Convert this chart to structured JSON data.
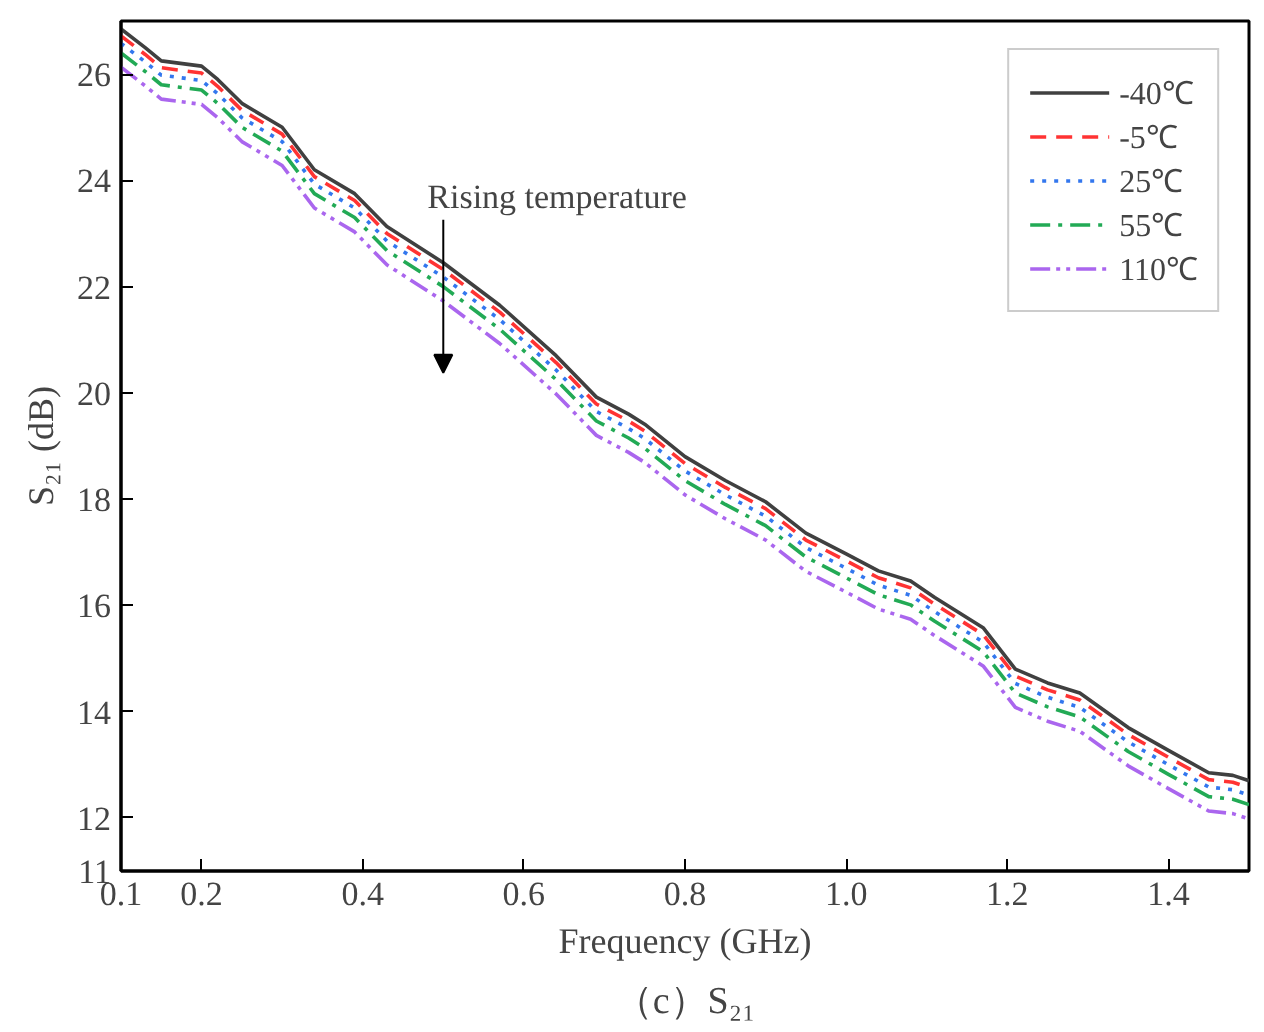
{
  "chart_data": {
    "type": "line",
    "xlabel": "Frequency (GHz)",
    "ylabel": "S₂₁ (dB)",
    "x": [
      0.1,
      0.13,
      0.15,
      0.2,
      0.22,
      0.25,
      0.3,
      0.34,
      0.39,
      0.43,
      0.5,
      0.57,
      0.64,
      0.69,
      0.73,
      0.75,
      0.8,
      0.85,
      0.9,
      0.95,
      1.0,
      1.04,
      1.08,
      1.11,
      1.17,
      1.21,
      1.25,
      1.29,
      1.35,
      1.4,
      1.45,
      1.48,
      1.5
    ],
    "series": [
      {
        "name": "-40℃",
        "color": "#404040",
        "line_style": "solid",
        "values": [
          26.85,
          26.5,
          26.25,
          26.15,
          25.9,
          25.45,
          25.0,
          24.2,
          23.75,
          23.13,
          22.45,
          21.65,
          20.7,
          19.92,
          19.6,
          19.41,
          18.8,
          18.35,
          17.95,
          17.36,
          16.97,
          16.65,
          16.46,
          16.15,
          15.58,
          14.8,
          14.54,
          14.35,
          13.7,
          13.27,
          12.85,
          12.8,
          12.7
        ]
      },
      {
        "name": "-5℃",
        "color": "#ff3333",
        "line_style": "dashed",
        "values": [
          26.72,
          26.37,
          26.12,
          26.02,
          25.77,
          25.32,
          24.87,
          24.07,
          23.62,
          23.0,
          22.32,
          21.52,
          20.57,
          19.79,
          19.47,
          19.28,
          18.67,
          18.22,
          17.82,
          17.23,
          16.84,
          16.52,
          16.33,
          16.02,
          15.45,
          14.67,
          14.41,
          14.22,
          13.57,
          13.14,
          12.72,
          12.67,
          12.57
        ]
      },
      {
        "name": "25℃",
        "color": "#3377ee",
        "line_style": "dotted",
        "values": [
          26.58,
          26.23,
          25.98,
          25.88,
          25.63,
          25.18,
          24.73,
          23.93,
          23.48,
          22.86,
          22.18,
          21.38,
          20.43,
          19.65,
          19.33,
          19.14,
          18.53,
          18.08,
          17.68,
          17.09,
          16.7,
          16.38,
          16.19,
          15.88,
          15.31,
          14.53,
          14.27,
          14.08,
          13.43,
          13.0,
          12.58,
          12.53,
          12.43
        ]
      },
      {
        "name": "55℃",
        "color": "#22aa55",
        "line_style": "dashdot",
        "values": [
          26.4,
          26.05,
          25.8,
          25.7,
          25.45,
          25.0,
          24.55,
          23.75,
          23.3,
          22.68,
          22.0,
          21.2,
          20.25,
          19.47,
          19.15,
          18.96,
          18.35,
          17.9,
          17.5,
          16.91,
          16.52,
          16.2,
          16.01,
          15.7,
          15.13,
          14.35,
          14.09,
          13.9,
          13.25,
          12.82,
          12.4,
          12.35,
          12.25
        ]
      },
      {
        "name": "110℃",
        "color": "#aa66ee",
        "line_style": "dashdotdot",
        "values": [
          26.13,
          25.78,
          25.53,
          25.43,
          25.18,
          24.73,
          24.28,
          23.48,
          23.03,
          22.41,
          21.73,
          20.93,
          19.98,
          19.2,
          18.88,
          18.69,
          18.08,
          17.63,
          17.23,
          16.64,
          16.25,
          15.93,
          15.74,
          15.43,
          14.86,
          14.08,
          13.82,
          13.63,
          12.98,
          12.55,
          12.13,
          12.08,
          11.98
        ]
      }
    ],
    "xlim": [
      0.1,
      1.5
    ],
    "xticks": [
      0.1,
      0.2,
      0.4,
      0.6,
      0.8,
      {
        "value": 1.0,
        "label": "1.0"
      },
      1.2,
      1.4
    ],
    "ylim": [
      11,
      27
    ],
    "yticks": [
      11,
      12,
      14,
      16,
      18,
      20,
      22,
      24,
      26
    ],
    "grid": false,
    "legend": "top right",
    "annotations": [
      {
        "text": "Rising temperature",
        "x": 0.5,
        "y": 22.3
      },
      "（c）S₂₁"
    ]
  }
}
